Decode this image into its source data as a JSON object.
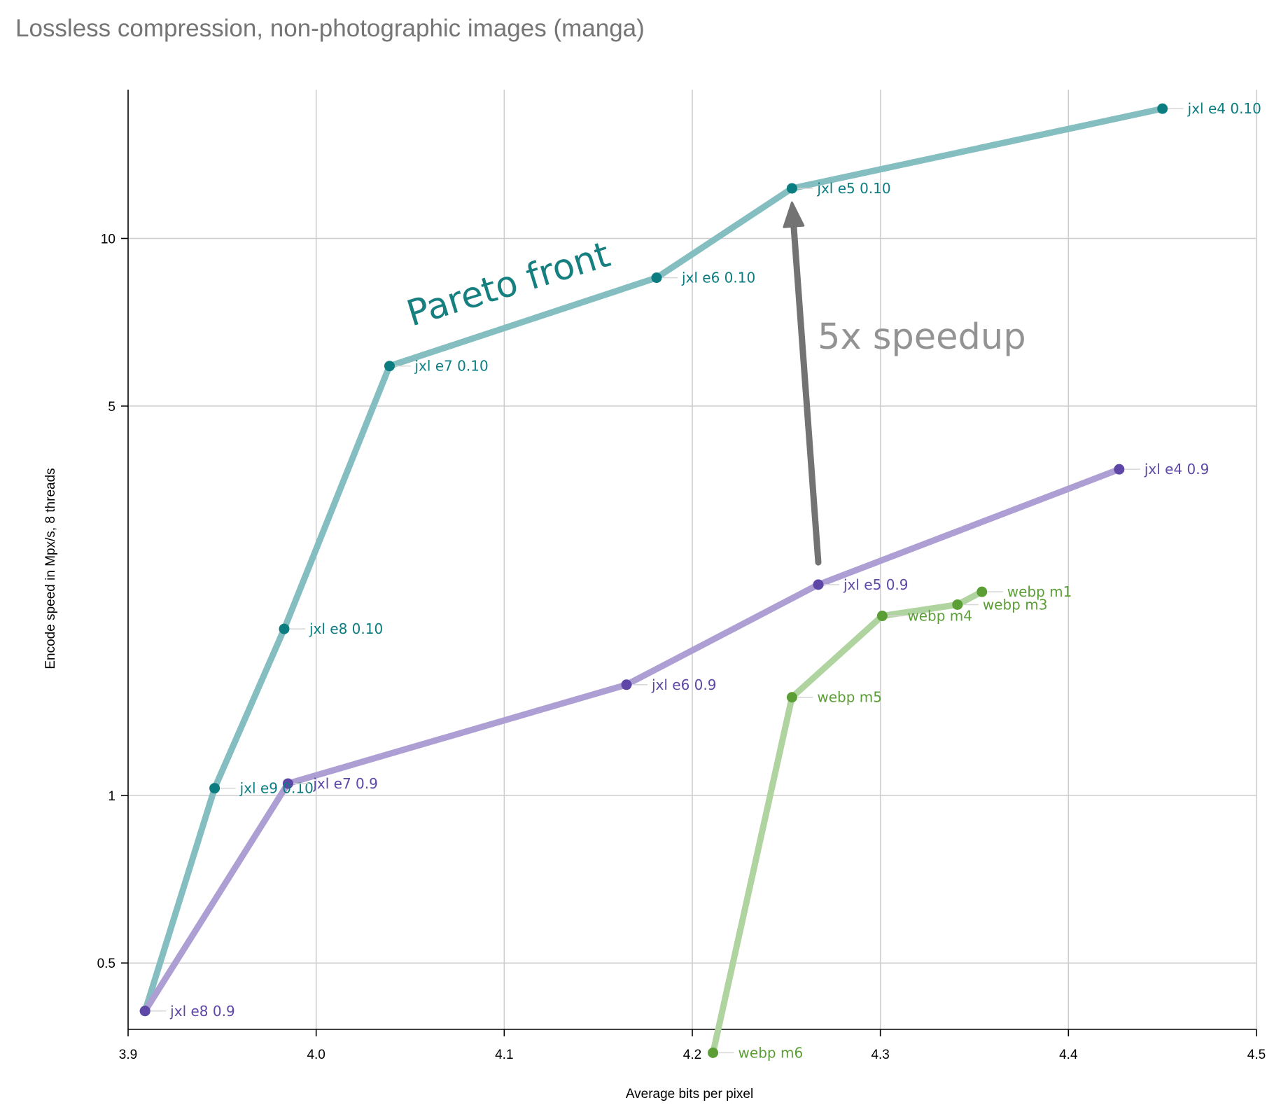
{
  "chart_data": {
    "type": "line",
    "title": "Lossless compression, non-photographic images (manga)",
    "xlabel": "Average bits per pixel",
    "ylabel": "Encode speed in Mpx/s, 8 threads",
    "xlim": [
      3.9,
      4.5
    ],
    "ylim": [
      0.38,
      18.5
    ],
    "yscale": "log",
    "xticks": [
      "3.9",
      "4.0",
      "4.1",
      "4.2",
      "4.3",
      "4.4",
      "4.5"
    ],
    "yticks": [
      "0.5",
      "1",
      "5",
      "10"
    ],
    "grid": true,
    "series": [
      {
        "color": "#0b7d80",
        "line_color": "#84bec0",
        "points": [
          {
            "x": 3.909,
            "y": 0.41
          },
          {
            "x": 3.946,
            "y": 1.03,
            "label": "jxl e9 0.10"
          },
          {
            "x": 3.983,
            "y": 1.99,
            "label": "jxl e8 0.10"
          },
          {
            "x": 4.039,
            "y": 5.9,
            "label": "jxl e7 0.10"
          },
          {
            "x": 4.181,
            "y": 8.5,
            "label": "jxl e6 0.10"
          },
          {
            "x": 4.253,
            "y": 12.3,
            "label": "jxl e5 0.10"
          },
          {
            "x": 4.45,
            "y": 17.1,
            "label": "jxl e4 0.10"
          }
        ]
      },
      {
        "color": "#5e47a6",
        "line_color": "#ad9fd4",
        "points": [
          {
            "x": 3.909,
            "y": 0.41,
            "label": "jxl e8 0.9"
          },
          {
            "x": 3.985,
            "y": 1.05,
            "label": "jxl e7 0.9"
          },
          {
            "x": 4.165,
            "y": 1.58,
            "label": "jxl e6 0.9"
          },
          {
            "x": 4.267,
            "y": 2.39,
            "label": "jxl e5 0.9"
          },
          {
            "x": 4.427,
            "y": 3.85,
            "label": "jxl e4 0.9"
          }
        ]
      },
      {
        "color": "#5a9e35",
        "line_color": "#b0d4a0",
        "points": [
          {
            "x": 4.211,
            "y": 0.345,
            "label": "webp m6"
          },
          {
            "x": 4.253,
            "y": 1.5,
            "label": "webp m5"
          },
          {
            "x": 4.301,
            "y": 2.1,
            "label": "webp m4"
          },
          {
            "x": 4.341,
            "y": 2.2,
            "label": "webp m3"
          },
          {
            "x": 4.354,
            "y": 2.32,
            "label": "webp m1"
          }
        ]
      }
    ],
    "annotations": {
      "pareto": {
        "text": "Pareto front",
        "color": "#167f80"
      },
      "speedup": {
        "text": "5x speedup",
        "color": "#939393",
        "arrow_from": {
          "x": 4.267,
          "y": 2.62
        },
        "arrow_to": {
          "x": 4.253,
          "y": 11.6
        },
        "arrow_color": "#737373"
      }
    }
  }
}
